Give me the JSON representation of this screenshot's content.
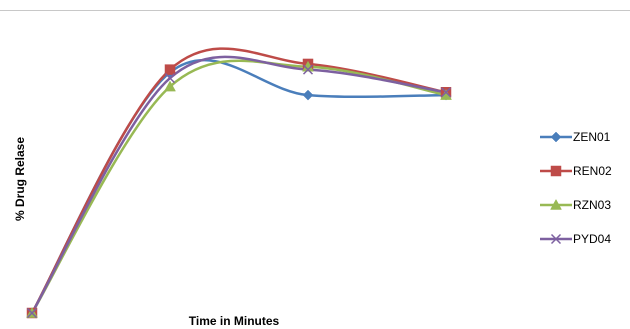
{
  "chart_data": {
    "type": "line",
    "title": "",
    "xlabel": "Time in Minutes",
    "ylabel": "% Drug Relase",
    "x": [
      0,
      1,
      2,
      3
    ],
    "ylim": [
      0,
      100
    ],
    "grid": false,
    "legend_position": "right",
    "smooth": true,
    "series": [
      {
        "name": "ZEN01",
        "values": [
          0,
          85,
          77,
          77
        ],
        "color": "#4a7ebb",
        "marker": "diamond"
      },
      {
        "name": "REN02",
        "values": [
          0,
          86,
          88,
          78
        ],
        "color": "#be4b48",
        "marker": "square"
      },
      {
        "name": "RZN03",
        "values": [
          0,
          80,
          87,
          77
        ],
        "color": "#98b954",
        "marker": "triangle"
      },
      {
        "name": "PYD04",
        "values": [
          0,
          83,
          86,
          78
        ],
        "color": "#7d60a0",
        "marker": "x"
      }
    ]
  }
}
